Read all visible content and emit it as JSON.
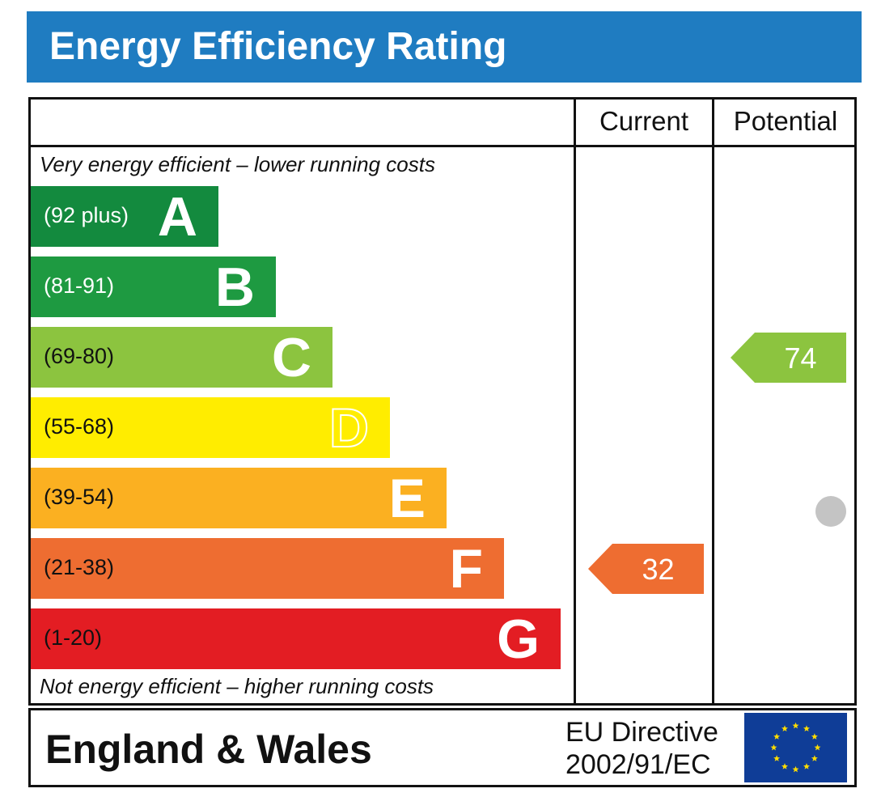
{
  "title": "Energy Efficiency Rating",
  "columns": {
    "current": "Current",
    "potential": "Potential"
  },
  "notes": {
    "top": "Very energy efficient – lower running costs",
    "bottom": "Not energy efficient – higher running costs"
  },
  "chart_data": {
    "type": "bar",
    "categories": [
      "A",
      "B",
      "C",
      "D",
      "E",
      "F",
      "G"
    ],
    "ranges": [
      "(92 plus)",
      "(81-91)",
      "(69-80)",
      "(55-68)",
      "(39-54)",
      "(21-38)",
      "(1-20)"
    ],
    "colors": [
      "#138a3e",
      "#1e9a41",
      "#8cc43f",
      "#ffed00",
      "#fbb021",
      "#ee6d31",
      "#e31d23"
    ],
    "range_text_colors": [
      "#ffffff",
      "#ffffff",
      "#111111",
      "#111111",
      "#111111",
      "#111111",
      "#111111"
    ],
    "current": {
      "value": 32,
      "band": "F",
      "color": "#ee6d31"
    },
    "potential": {
      "value": 74,
      "band": "C",
      "color": "#8cc43f"
    }
  },
  "footer": {
    "country": "England & Wales",
    "directive_line1": "EU Directive",
    "directive_line2": "2002/91/EC"
  }
}
